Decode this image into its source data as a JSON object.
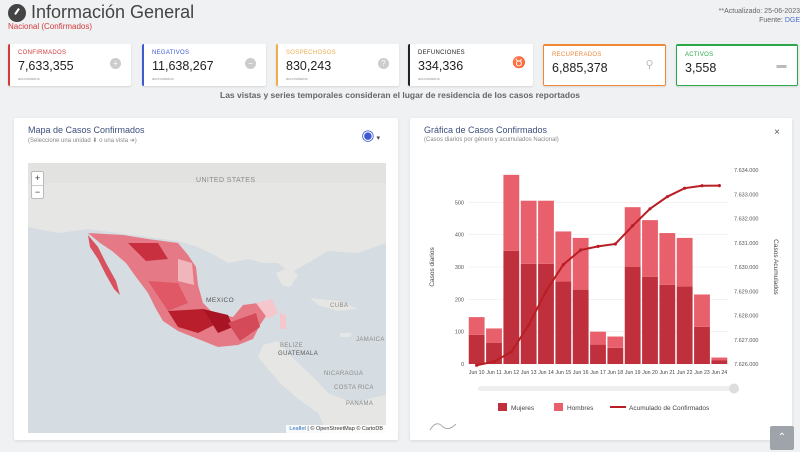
{
  "header": {
    "title": "Información General",
    "subtitle": "Nacional (Confirmados)",
    "updated_label": "**Actualizado: 25-06-2023",
    "source_label": "Fuente: ",
    "source_value": "DGE"
  },
  "cards": [
    {
      "label": "CONFIRMADOS",
      "value": "7,633,355",
      "sub": "acumulados",
      "icon": "plus-icon",
      "color": "#d13b3b"
    },
    {
      "label": "NEGATIVOS",
      "value": "11,638,267",
      "sub": "acumulados",
      "icon": "minus-icon",
      "color": "#3d5ad1"
    },
    {
      "label": "SOSPECHOSOS",
      "value": "830,243",
      "sub": "acumulados",
      "icon": "question-icon",
      "color": "#f0ad4e"
    },
    {
      "label": "DEFUNCIONES",
      "value": "334,336",
      "sub": "acumulados",
      "icon": "ribbon-icon",
      "color": "#222222"
    },
    {
      "label": "RECUPERADOS",
      "value": "6,885,378",
      "sub": "",
      "icon": "walking-icon",
      "color": "#f0883a"
    },
    {
      "label": "ACTIVOS",
      "value": "3,558",
      "sub": "",
      "icon": "bed-icon",
      "color": "#2aa84a"
    }
  ],
  "banner": "Las vistas y series temporales consideran el lugar de residencia de los casos reportados",
  "map_panel": {
    "title": "Mapa de Casos Confirmados",
    "subtitle": "(Seleccione una unidad ⬇ o una vista ➜)",
    "zoom_in": "+",
    "zoom_out": "−",
    "labels": [
      "UNITED STATES",
      "MEXICO",
      "CUBA",
      "JAMAICA",
      "BELIZE",
      "GUATEMALA",
      "NICARAGUA",
      "COSTA RICA",
      "PANAMA"
    ],
    "attribution_leaflet": "Leaflet",
    "attribution_rest": " | © OpenStreetMap © CartoDB"
  },
  "chart_panel": {
    "title": "Gráfica de Casos Confirmados",
    "subtitle": "(Casos diarios por género y acumulados Nacional)",
    "close": "×"
  },
  "chart_data": {
    "type": "bar",
    "categories": [
      "Jun 10",
      "Jun 11",
      "Jun 12",
      "Jun 13",
      "Jun 14",
      "Jun 15",
      "Jun 16",
      "Jun 17",
      "Jun 18",
      "Jun 19",
      "Jun 20",
      "Jun 21",
      "Jun 22",
      "Jun 23",
      "Jun 24"
    ],
    "series": [
      {
        "name": "Mujeres",
        "color": "#c0303c",
        "values": [
          90,
          65,
          350,
          310,
          310,
          255,
          230,
          60,
          50,
          300,
          270,
          245,
          240,
          115,
          12
        ]
      },
      {
        "name": "Hombres",
        "color": "#e8606c",
        "values": [
          55,
          45,
          235,
          195,
          195,
          155,
          160,
          40,
          35,
          185,
          175,
          160,
          150,
          100,
          8
        ]
      },
      {
        "name": "Acumulado de Confirmados",
        "color": "#b81e24",
        "axis": "right",
        "values": [
          7625950,
          7626100,
          7626500,
          7627600,
          7629000,
          7630100,
          7630700,
          7630850,
          7630950,
          7631700,
          7632400,
          7632900,
          7633250,
          7633350,
          7633355
        ]
      }
    ],
    "ylabel": "Casos diarios",
    "y2label": "Casos Acumulados",
    "ylim": [
      0,
      600
    ],
    "yticks": [
      0,
      100,
      200,
      300,
      400,
      500
    ],
    "y2lim": [
      7626000,
      7634000
    ],
    "y2ticks": [
      "7.626.000",
      "7.627.000",
      "7.628.000",
      "7.629.000",
      "7.630.000",
      "7.631.000",
      "7.632.000",
      "7.633.000",
      "7.634.000"
    ]
  },
  "scroll_top": "⌃"
}
